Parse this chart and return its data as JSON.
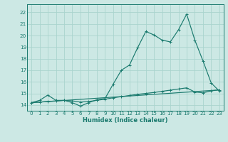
{
  "xlabel": "Humidex (Indice chaleur)",
  "bg_color": "#cce8e4",
  "line_color": "#1a7a6e",
  "grid_color": "#aad4ce",
  "xlim": [
    -0.5,
    23.5
  ],
  "ylim": [
    13.5,
    22.7
  ],
  "yticks": [
    14,
    15,
    16,
    17,
    18,
    19,
    20,
    21,
    22
  ],
  "xticks": [
    0,
    1,
    2,
    3,
    4,
    5,
    6,
    7,
    8,
    9,
    10,
    11,
    12,
    13,
    14,
    15,
    16,
    17,
    18,
    19,
    20,
    21,
    22,
    23
  ],
  "series1_x": [
    0,
    1,
    2,
    3,
    4,
    5,
    6,
    7,
    8,
    9,
    10,
    11,
    12,
    13,
    14,
    15,
    16,
    17,
    18,
    19,
    20,
    21,
    22,
    23
  ],
  "series1_y": [
    14.2,
    14.4,
    14.85,
    14.4,
    14.4,
    14.2,
    13.9,
    14.2,
    14.45,
    14.55,
    15.8,
    17.0,
    17.45,
    18.95,
    20.35,
    20.05,
    19.6,
    19.45,
    20.5,
    21.85,
    19.6,
    17.8,
    15.9,
    15.2
  ],
  "series2_x": [
    0,
    1,
    2,
    3,
    4,
    5,
    6,
    7,
    8,
    9,
    10,
    11,
    12,
    13,
    14,
    15,
    16,
    17,
    18,
    19,
    20,
    21,
    22,
    23
  ],
  "series2_y": [
    14.2,
    14.25,
    14.3,
    14.35,
    14.4,
    14.35,
    14.25,
    14.3,
    14.4,
    14.5,
    14.62,
    14.72,
    14.82,
    14.92,
    15.0,
    15.08,
    15.18,
    15.28,
    15.38,
    15.48,
    15.12,
    15.05,
    15.22,
    15.3
  ],
  "series3_x": [
    0,
    23
  ],
  "series3_y": [
    14.2,
    15.3
  ]
}
